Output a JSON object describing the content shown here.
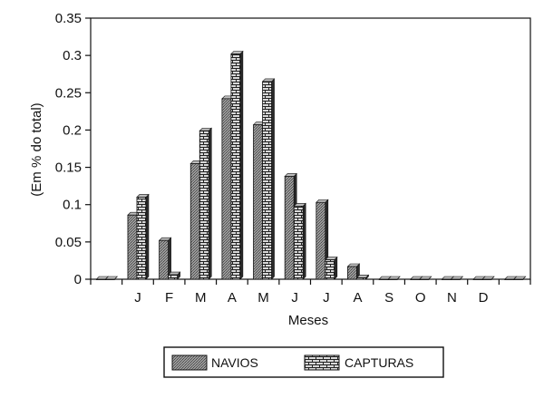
{
  "chart_data": {
    "type": "bar",
    "categories": [
      "",
      "J",
      "F",
      "M",
      "A",
      "M",
      "J",
      "J",
      "A",
      "S",
      "O",
      "N",
      "D",
      ""
    ],
    "series": [
      {
        "name": "NAVIOS",
        "values": [
          0,
          0.086,
          0.052,
          0.155,
          0.242,
          0.207,
          0.138,
          0.103,
          0.017,
          0,
          0,
          0,
          0,
          0
        ],
        "fill": "#8a8a8a"
      },
      {
        "name": "CAPTURAS",
        "values": [
          0,
          0.11,
          0.006,
          0.199,
          0.302,
          0.265,
          0.098,
          0.026,
          0.002,
          0,
          0,
          0,
          0,
          0
        ],
        "fill": "#6e6e6e"
      }
    ],
    "title": "",
    "xlabel": "Meses",
    "ylabel": "(Em % do total)",
    "ylim": [
      0,
      0.35
    ],
    "yticks": [
      0,
      0.05,
      0.1,
      0.15,
      0.2,
      0.25,
      0.3,
      0.35
    ],
    "ytick_labels": [
      "0",
      "0.05",
      "0.1",
      "0.15",
      "0.2",
      "0.25",
      "0.3",
      "0.35"
    ],
    "grid": false,
    "legend_position": "bottom"
  }
}
